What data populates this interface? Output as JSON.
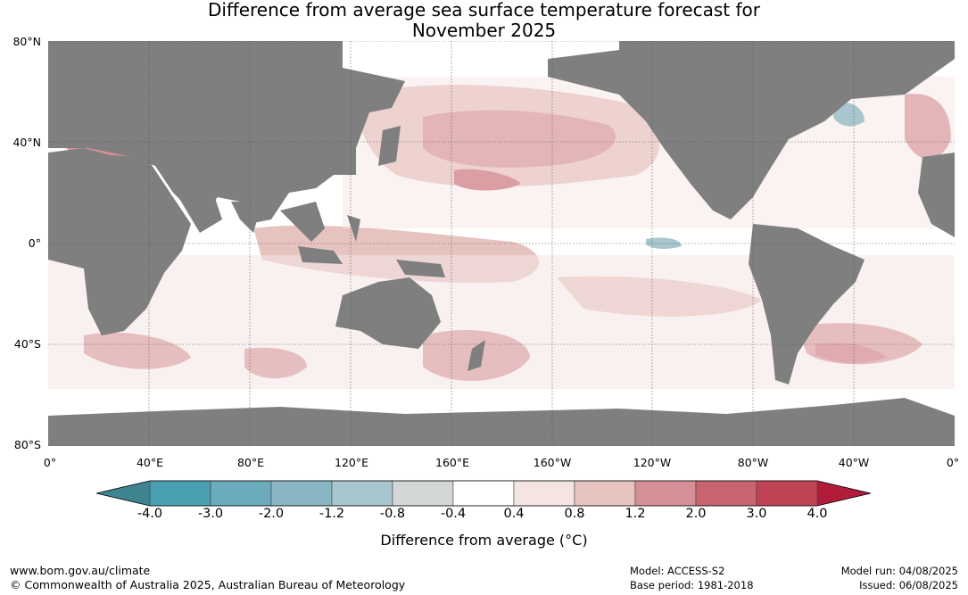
{
  "title_line1": "Difference from average sea surface temperature forecast for",
  "title_line2": "November 2025",
  "map": {
    "lat_labels": [
      "80°N",
      "40°N",
      "0°",
      "40°S",
      "80°S"
    ],
    "lon_labels": [
      "0°",
      "40°E",
      "80°E",
      "120°E",
      "160°E",
      "160°W",
      "120°W",
      "80°W",
      "40°W",
      "0°"
    ],
    "land_color": "#7f7f7f"
  },
  "colorbar": {
    "unit_label": "Difference from average (°C)",
    "tick_labels": [
      "-4.0",
      "-3.0",
      "-2.0",
      "-1.2",
      "-0.8",
      "-0.4",
      "0.4",
      "0.8",
      "1.2",
      "2.0",
      "3.0",
      "4.0"
    ],
    "colors": [
      "#3f8591",
      "#4aa0b2",
      "#6babbb",
      "#89b6c3",
      "#a8c6cd",
      "#d3d7d8",
      "#ffffff",
      "#f4e5e3",
      "#e7c3c0",
      "#d68f96",
      "#c76470",
      "#be4455",
      "#b01c3a"
    ]
  },
  "footer": {
    "website": "www.bom.gov.au/climate",
    "copyright": "© Commonwealth of Australia 2025, Australian Bureau of Meteorology",
    "model": "Model: ACCESS-S2",
    "base_period": "Base period: 1981-2018",
    "model_run": "Model run: 04/08/2025",
    "issued": "Issued: 06/08/2025"
  }
}
